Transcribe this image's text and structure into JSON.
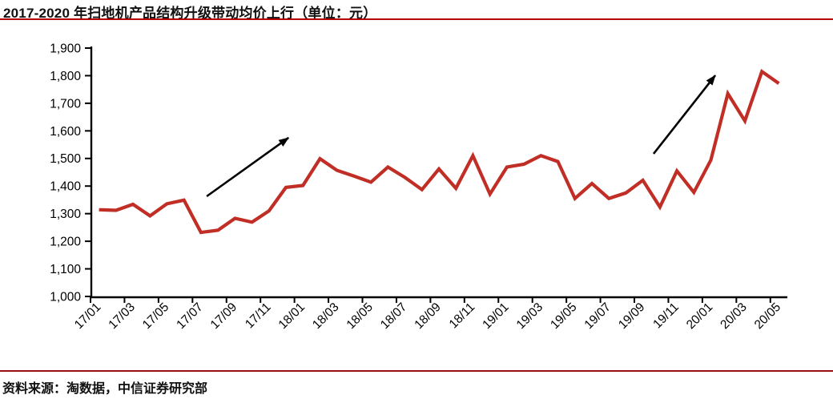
{
  "header": {
    "title": "2017-2020 年扫地机产品结构升级带动均价上行（单位：元）"
  },
  "footer": {
    "source": "资料来源：淘数据，中信证券研究部"
  },
  "colors": {
    "line": "#c02e25",
    "axis": "#000000",
    "tick_text": "#000000",
    "title_rule": "#b30000",
    "footer_rule": "#991111",
    "arrow": "#000000"
  },
  "chart_data": {
    "type": "line",
    "title": "2017-2020 年扫地机产品结构升级带动均价上行（单位：元）",
    "unit": "元",
    "x": [
      "17/01",
      "17/02",
      "17/03",
      "17/04",
      "17/05",
      "17/06",
      "17/07",
      "17/08",
      "17/09",
      "17/10",
      "17/11",
      "17/12",
      "18/01",
      "18/02",
      "18/03",
      "18/04",
      "18/05",
      "18/06",
      "18/07",
      "18/08",
      "18/09",
      "18/10",
      "18/11",
      "18/12",
      "19/01",
      "19/02",
      "19/03",
      "19/04",
      "19/05",
      "19/06",
      "19/07",
      "19/08",
      "19/09",
      "19/10",
      "19/11",
      "19/12",
      "20/01",
      "20/02",
      "20/03",
      "20/04",
      "20/05"
    ],
    "values": [
      1314,
      1312,
      1334,
      1292,
      1336,
      1349,
      1232,
      1240,
      1283,
      1269,
      1310,
      1395,
      1402,
      1499,
      1457,
      1436,
      1414,
      1469,
      1431,
      1387,
      1462,
      1392,
      1510,
      1371,
      1469,
      1479,
      1510,
      1489,
      1355,
      1409,
      1355,
      1375,
      1421,
      1324,
      1455,
      1377,
      1494,
      1735,
      1636,
      1815,
      1772
    ],
    "x_tick_labels": [
      "17/01",
      "17/03",
      "17/05",
      "17/07",
      "17/09",
      "17/11",
      "18/01",
      "18/03",
      "18/05",
      "18/07",
      "18/09",
      "18/11",
      "19/01",
      "19/03",
      "19/05",
      "19/07",
      "19/09",
      "19/11",
      "20/01",
      "20/03",
      "20/05"
    ],
    "y_tick_labels": [
      "1,000",
      "1,100",
      "1,200",
      "1,300",
      "1,400",
      "1,500",
      "1,600",
      "1,700",
      "1,800",
      "1,900"
    ],
    "y_ticks": [
      1000,
      1100,
      1200,
      1300,
      1400,
      1500,
      1600,
      1700,
      1800,
      1900
    ],
    "ylim": [
      1000,
      1900
    ],
    "grid": false,
    "legend": "none",
    "annotations": [
      {
        "type": "arrow",
        "from": [
          6.34,
          1363
        ],
        "to": [
          11.15,
          1575
        ]
      },
      {
        "type": "arrow",
        "from": [
          32.63,
          1517
        ],
        "to": [
          36.26,
          1801
        ]
      }
    ]
  }
}
